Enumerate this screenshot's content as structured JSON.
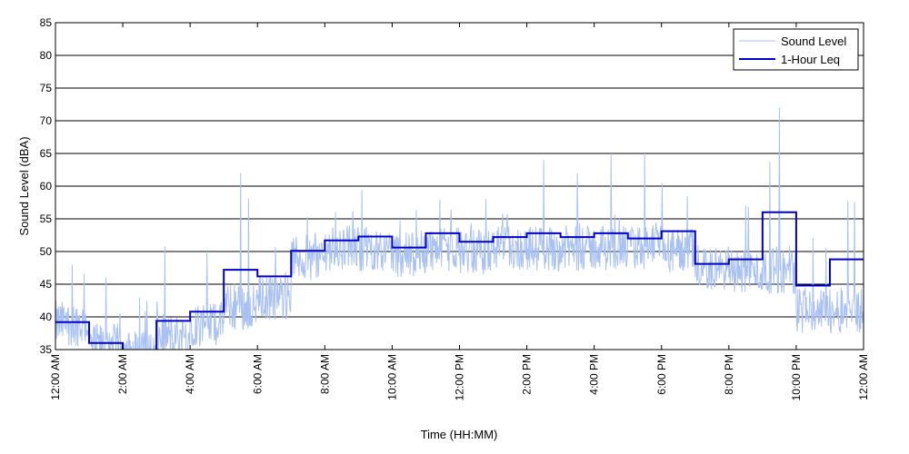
{
  "chart_data": {
    "type": "line",
    "title": "",
    "xlabel": "Time (HH:MM)",
    "ylabel": "Sound Level (dBA)",
    "xlim": [
      0,
      24
    ],
    "ylim": [
      35,
      85
    ],
    "y_ticks": [
      35,
      40,
      45,
      50,
      55,
      60,
      65,
      70,
      75,
      80,
      85
    ],
    "x_ticks": [
      0,
      2,
      4,
      6,
      8,
      10,
      12,
      14,
      16,
      18,
      20,
      22,
      24
    ],
    "x_tick_labels": [
      "12:00 AM",
      "2:00 AM",
      "4:00 AM",
      "6:00 AM",
      "8:00 AM",
      "10:00 AM",
      "12:00 PM",
      "2:00 PM",
      "4:00 PM",
      "6:00 PM",
      "8:00 PM",
      "10:00 PM",
      "12:00 AM"
    ],
    "grid": "horizontal",
    "legend_position": "top-right",
    "series": [
      {
        "name": "Sound Level",
        "color": "#a9c1f2",
        "style": "thin-line",
        "hourly_mean": [
          39,
          35.5,
          34.5,
          37,
          39,
          41.5,
          43,
          49,
          50.5,
          50.5,
          49.5,
          50.5,
          50,
          50.5,
          50.5,
          50.5,
          50.5,
          50.5,
          50,
          47.5,
          47,
          47,
          41,
          41
        ],
        "hourly_peak": [
          48,
          46,
          43,
          51,
          50,
          62,
          52,
          56,
          59,
          62,
          60,
          60,
          59,
          62,
          64,
          62,
          65,
          65,
          62,
          55,
          57,
          72,
          52,
          62
        ]
      },
      {
        "name": "1-Hour Leq",
        "color": "#0000cc",
        "style": "step",
        "values": [
          39.2,
          36,
          34.6,
          39.4,
          40.8,
          47.2,
          46.2,
          50.1,
          51.7,
          52.3,
          50.6,
          52.8,
          51.5,
          52.2,
          52.8,
          52.2,
          52.8,
          52.0,
          53.1,
          48.1,
          48.8,
          56.0,
          44.8,
          48.8
        ]
      }
    ]
  }
}
